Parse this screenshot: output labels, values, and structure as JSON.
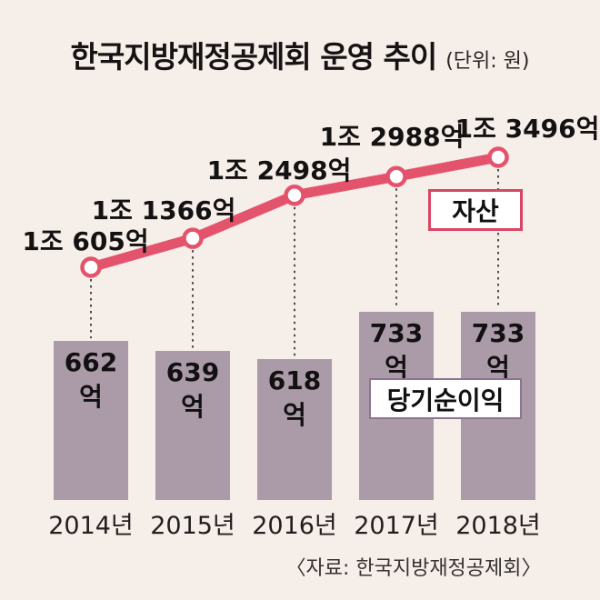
{
  "title": {
    "main": "한국지방재정공제회 운영 추이",
    "unit": "(단위: 원)"
  },
  "legend": {
    "assets": "자산",
    "net_income": "당기순이익"
  },
  "source": "〈자료: 한국지방재정공제회〉",
  "colors": {
    "background": "#f6eee8",
    "line": "#e3546c",
    "bar": "#ab9ba9",
    "asset_border": "#d84663",
    "income_border": "#8d7590",
    "dash": "#4d4a4a"
  },
  "chart_data": [
    {
      "type": "line",
      "name": "자산",
      "categories": [
        "2014년",
        "2015년",
        "2016년",
        "2017년",
        "2018년"
      ],
      "values": [
        10605,
        11366,
        12498,
        12988,
        13496
      ],
      "value_labels": [
        "1조 605억",
        "1조 1366억",
        "1조 2498억",
        "1조 2988억",
        "1조 3496억"
      ],
      "unit": "억 원",
      "legend_position": "right-middle",
      "grid": false
    },
    {
      "type": "bar",
      "name": "당기순이익",
      "categories": [
        "2014년",
        "2015년",
        "2016년",
        "2017년",
        "2018년"
      ],
      "values": [
        662,
        639,
        618,
        733,
        733
      ],
      "value_labels": [
        "662억",
        "639억",
        "618억",
        "733억",
        "733억"
      ],
      "unit": "억 원",
      "legend_position": "center-on-bars",
      "grid": false
    }
  ]
}
